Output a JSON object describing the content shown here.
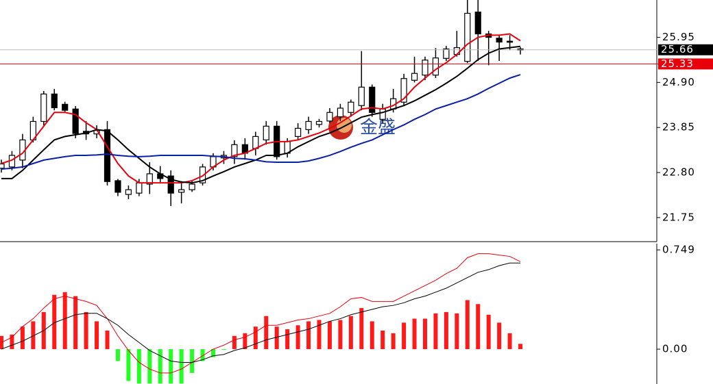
{
  "chart_data": [
    {
      "type": "candlestick",
      "open": [
        22.9,
        22.93,
        23.09,
        23.56,
        23.99,
        24.63,
        24.39,
        24.28,
        23.76,
        23.7,
        23.8,
        22.61,
        22.29,
        22.32,
        22.53,
        22.77,
        22.72,
        22.34,
        22.4,
        22.56,
        22.93,
        23.14,
        23.17,
        23.45,
        23.36,
        23.56,
        23.88,
        23.25,
        23.64,
        23.8,
        23.92,
        24.0,
        24.1,
        24.2,
        24.36,
        24.79,
        24.04,
        24.28,
        24.44,
        24.95,
        25.07,
        25.07,
        25.46,
        25.55,
        25.39,
        26.54,
        26.03,
        25.93,
        25.86,
        25.68
      ],
      "high": [
        23.1,
        23.3,
        23.7,
        24.1,
        24.7,
        24.75,
        24.45,
        24.35,
        24.0,
        23.9,
        24.0,
        22.65,
        22.5,
        22.65,
        23.04,
        22.95,
        22.85,
        22.6,
        22.6,
        23.0,
        23.25,
        23.3,
        23.55,
        23.6,
        23.75,
        24.0,
        24.0,
        23.6,
        23.95,
        24.1,
        24.05,
        24.3,
        24.4,
        24.5,
        25.63,
        24.85,
        24.4,
        24.75,
        25.1,
        25.5,
        25.5,
        25.7,
        25.75,
        26.1,
        26.83,
        26.83,
        26.1,
        26.0,
        26.0,
        25.72
      ],
      "low": [
        22.8,
        22.85,
        22.9,
        23.5,
        23.9,
        24.25,
        24.2,
        23.6,
        23.56,
        23.6,
        22.5,
        22.25,
        22.18,
        22.25,
        22.3,
        22.55,
        22.02,
        22.08,
        22.35,
        22.5,
        22.85,
        23.0,
        23.0,
        23.1,
        23.2,
        23.45,
        23.1,
        23.15,
        23.55,
        23.7,
        23.85,
        23.95,
        24.0,
        24.1,
        24.25,
        24.1,
        23.95,
        24.2,
        24.35,
        24.9,
        24.95,
        25.0,
        25.4,
        25.5,
        25.35,
        25.4,
        25.3,
        25.4,
        25.65,
        25.55
      ],
      "close": [
        23.0,
        23.2,
        23.56,
        23.99,
        24.63,
        24.31,
        24.25,
        23.71,
        23.7,
        23.78,
        22.59,
        22.34,
        22.4,
        22.56,
        22.77,
        22.66,
        22.32,
        22.4,
        22.53,
        22.93,
        23.17,
        23.2,
        23.45,
        23.25,
        23.64,
        23.88,
        23.17,
        23.52,
        23.83,
        23.99,
        23.99,
        24.2,
        24.3,
        24.44,
        24.79,
        24.2,
        24.28,
        24.52,
        24.99,
        25.11,
        25.42,
        25.47,
        25.68,
        25.71,
        26.51,
        26.03,
        25.95,
        25.84,
        25.84,
        25.66
      ],
      "up_color": "#ffffff",
      "down_color": "#000000",
      "series": [
        {
          "color": "#e8000b",
          "values": [
            23.01,
            23.09,
            23.25,
            23.56,
            23.88,
            24.2,
            24.2,
            24.15,
            23.96,
            23.8,
            23.4,
            23.01,
            22.72,
            22.56,
            22.56,
            22.56,
            22.56,
            22.56,
            22.61,
            22.72,
            22.93,
            23.09,
            23.2,
            23.25,
            23.36,
            23.48,
            23.52,
            23.52,
            23.56,
            23.64,
            23.72,
            23.83,
            23.96,
            24.12,
            24.28,
            24.31,
            24.28,
            24.36,
            24.52,
            24.79,
            25.0,
            25.2,
            25.36,
            25.55,
            25.79,
            25.95,
            26.0,
            26.0,
            26.03,
            25.87
          ]
        },
        {
          "color": "#000000",
          "values": [
            22.66,
            22.66,
            22.85,
            23.09,
            23.33,
            23.56,
            23.64,
            23.68,
            23.72,
            23.8,
            23.77,
            23.56,
            23.33,
            23.13,
            22.93,
            22.77,
            22.64,
            22.58,
            22.56,
            22.61,
            22.72,
            22.82,
            22.93,
            23.01,
            23.09,
            23.2,
            23.2,
            23.25,
            23.4,
            23.52,
            23.64,
            23.72,
            23.83,
            23.96,
            24.09,
            24.15,
            24.2,
            24.28,
            24.36,
            24.47,
            24.6,
            24.73,
            24.88,
            25.04,
            25.23,
            25.43,
            25.58,
            25.68,
            25.71,
            25.74
          ]
        },
        {
          "color": "#0a1fa8",
          "values": [
            22.88,
            22.9,
            22.93,
            23.01,
            23.09,
            23.13,
            23.17,
            23.2,
            23.2,
            23.21,
            23.23,
            23.2,
            23.18,
            23.17,
            23.18,
            23.2,
            23.2,
            23.2,
            23.2,
            23.2,
            23.18,
            23.17,
            23.13,
            23.12,
            23.09,
            23.05,
            23.04,
            23.04,
            23.04,
            23.07,
            23.13,
            23.2,
            23.29,
            23.39,
            23.48,
            23.56,
            23.68,
            23.8,
            23.91,
            24.04,
            24.15,
            24.28,
            24.36,
            24.44,
            24.52,
            24.63,
            24.76,
            24.88,
            25.0,
            25.08
          ]
        }
      ],
      "markers": [
        {
          "value": 25.66,
          "color": "#000000",
          "line_color": "#bbbbbb"
        },
        {
          "value": 25.33,
          "color": "#e8000b",
          "line_color": "#d40000"
        }
      ],
      "watermark": "金盛",
      "ylim": [
        21.19,
        26.82
      ],
      "yticks": [
        25.95,
        {
          "value": 24.9,
          "label": "24.90"
        },
        23.85,
        {
          "value": 22.8,
          "label": "22.80"
        },
        21.75
      ]
    },
    {
      "type": "bar",
      "values": [
        0.1,
        0.11,
        0.17,
        0.21,
        0.28,
        0.41,
        0.43,
        0.4,
        0.28,
        0.21,
        0.14,
        -0.09,
        -0.24,
        -0.26,
        -0.26,
        -0.26,
        -0.26,
        -0.26,
        -0.18,
        -0.09,
        -0.06,
        -0.005,
        0.1,
        0.12,
        0.17,
        0.25,
        0.17,
        0.15,
        0.18,
        0.21,
        0.22,
        0.21,
        0.22,
        0.25,
        0.31,
        0.21,
        0.14,
        0.12,
        0.2,
        0.23,
        0.23,
        0.27,
        0.28,
        0.27,
        0.37,
        0.34,
        0.26,
        0.2,
        0.12,
        0.04
      ],
      "up_color": "#ff1a1a",
      "down_color": "#22ff22",
      "series": [
        {
          "color": "#e8000b",
          "values": [
            0.05,
            0.09,
            0.17,
            0.23,
            0.31,
            0.38,
            0.4,
            0.38,
            0.36,
            0.33,
            0.23,
            0.1,
            -0.01,
            -0.1,
            -0.15,
            -0.18,
            -0.18,
            -0.15,
            -0.1,
            -0.05,
            0.0,
            0.03,
            0.07,
            0.09,
            0.13,
            0.18,
            0.18,
            0.2,
            0.22,
            0.23,
            0.25,
            0.27,
            0.32,
            0.38,
            0.39,
            0.36,
            0.36,
            0.36,
            0.4,
            0.44,
            0.48,
            0.52,
            0.57,
            0.61,
            0.69,
            0.72,
            0.72,
            0.71,
            0.7,
            0.66
          ]
        },
        {
          "color": "#000000",
          "values": [
            0.0,
            0.03,
            0.06,
            0.1,
            0.14,
            0.2,
            0.23,
            0.26,
            0.27,
            0.27,
            0.23,
            0.18,
            0.11,
            0.05,
            -0.01,
            -0.05,
            -0.09,
            -0.1,
            -0.1,
            -0.08,
            -0.05,
            -0.04,
            -0.01,
            0.01,
            0.04,
            0.07,
            0.09,
            0.11,
            0.13,
            0.15,
            0.18,
            0.21,
            0.23,
            0.26,
            0.28,
            0.3,
            0.32,
            0.33,
            0.35,
            0.38,
            0.4,
            0.43,
            0.46,
            0.5,
            0.54,
            0.58,
            0.6,
            0.63,
            0.65,
            0.65
          ]
        }
      ],
      "ylim": [
        -0.263,
        0.801
      ],
      "yticks": [
        0.749,
        {
          "value": 0,
          "label": "0.00"
        }
      ]
    }
  ]
}
